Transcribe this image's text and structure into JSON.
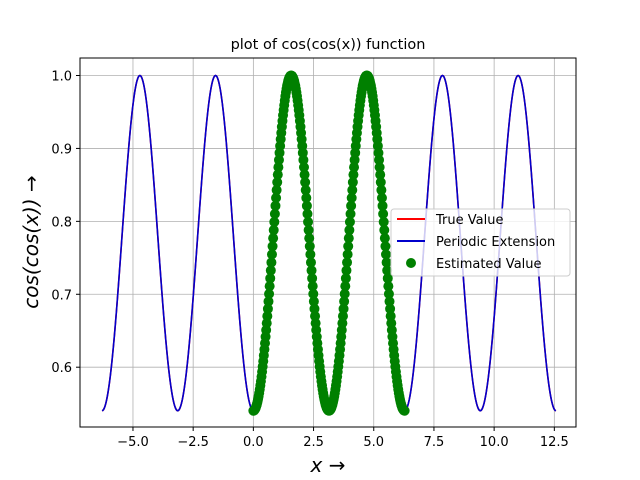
{
  "chart_data": {
    "type": "line",
    "title": "plot of cos(cos(x)) function",
    "xlabel": "x →",
    "ylabel": "cos(cos(x)) →",
    "xlim": [
      -7.2,
      13.4
    ],
    "ylim": [
      0.518,
      1.024
    ],
    "xticks": [
      -5.0,
      -2.5,
      0.0,
      2.5,
      5.0,
      7.5,
      10.0,
      12.5
    ],
    "xtick_labels": [
      "−5.0",
      "−2.5",
      "0.0",
      "2.5",
      "5.0",
      "7.5",
      "10.0",
      "12.5"
    ],
    "yticks": [
      0.6,
      0.7,
      0.8,
      0.9,
      1.0
    ],
    "ytick_labels": [
      "0.6",
      "0.7",
      "0.8",
      "0.9",
      "1.0"
    ],
    "grid": true,
    "legend_position": "center-right",
    "series": [
      {
        "name": "True Value",
        "kind": "line",
        "color": "#ff0000",
        "function": "cos(cos(x))",
        "x_range": [
          -6.2832,
          12.5664
        ]
      },
      {
        "name": "Periodic Extension",
        "kind": "line",
        "color": "#0000cc",
        "function": "cos(cos(x))",
        "x_range": [
          -6.2832,
          12.5664
        ]
      },
      {
        "name": "Estimated Value",
        "kind": "scatter",
        "color": "#008000",
        "function": "cos(cos(x))",
        "x_range": [
          0,
          6.2832
        ]
      }
    ]
  }
}
